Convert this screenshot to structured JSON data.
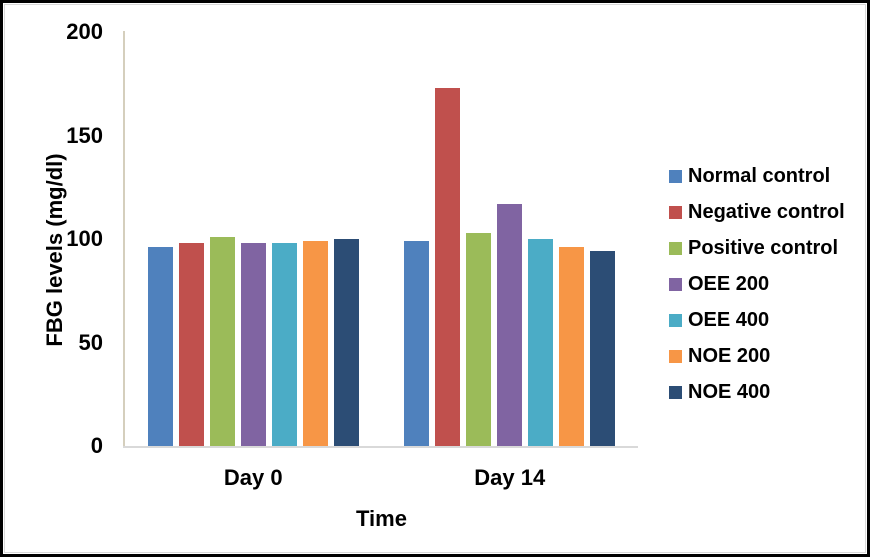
{
  "chart_data": {
    "type": "bar",
    "title": "",
    "xlabel": "Time",
    "ylabel": "FBG levels (mg/dl)",
    "ylim": [
      0,
      200
    ],
    "yticks": [
      0,
      50,
      100,
      150,
      200
    ],
    "grid": false,
    "legend_position": "right",
    "categories": [
      "Day 0",
      "Day 14"
    ],
    "series": [
      {
        "name": "Normal control",
        "color": "#4F81BD",
        "values": [
          96,
          99
        ]
      },
      {
        "name": "Negative control",
        "color": "#C0504D",
        "values": [
          98,
          173
        ]
      },
      {
        "name": "Positive control",
        "color": "#9BBB59",
        "values": [
          101,
          103
        ]
      },
      {
        "name": "OEE 200",
        "color": "#8064A2",
        "values": [
          98,
          117
        ]
      },
      {
        "name": "OEE 400",
        "color": "#4BACC6",
        "values": [
          98,
          100
        ]
      },
      {
        "name": "NOE 200",
        "color": "#F79646",
        "values": [
          99,
          96
        ]
      },
      {
        "name": "NOE 400",
        "color": "#2C4D75",
        "values": [
          100,
          94
        ]
      }
    ],
    "axis_colors": {
      "y_axis_line": "#D5CFBD",
      "x_axis_line": "#D9D9D9"
    }
  },
  "frame": {
    "outer_border_color": "#000000",
    "inner_border_color": "#D9D9D9"
  }
}
